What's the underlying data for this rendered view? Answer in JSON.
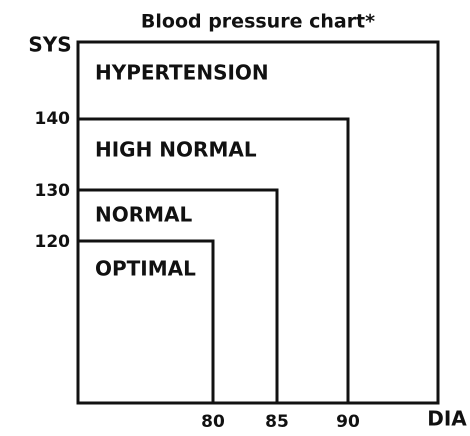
{
  "title": "Blood pressure chart*",
  "y_axis_label": "SYS",
  "x_axis_label": "DIA",
  "zones": [
    "HYPERTENSION",
    "HIGH NORMAL",
    "NORMAL",
    "OPTIMAL"
  ],
  "y_ticks": [
    140,
    130,
    120
  ],
  "x_ticks": [
    80,
    85,
    90
  ]
}
